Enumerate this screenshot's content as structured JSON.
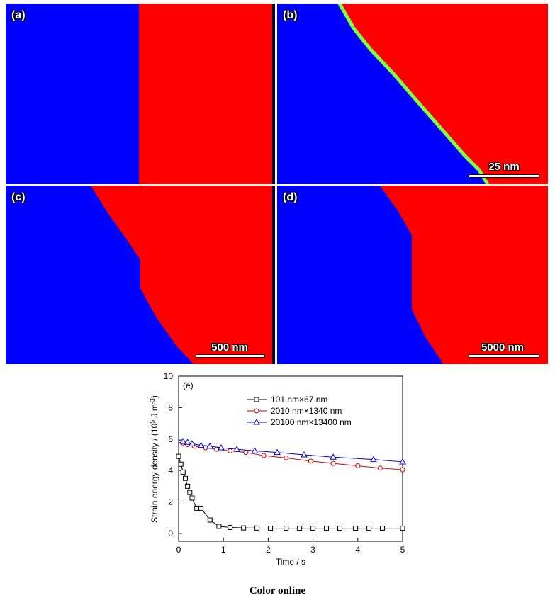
{
  "panels": {
    "a": {
      "label": "(a)"
    },
    "b": {
      "label": "(b)",
      "scalebar": "25 nm"
    },
    "c": {
      "label": "(c)",
      "scalebar": "500 nm"
    },
    "d": {
      "label": "(d)",
      "scalebar": "5000 nm"
    }
  },
  "colors": {
    "domain_left": "#0000ff",
    "domain_right": "#ff0000",
    "wall": "#7fff3f"
  },
  "chart_data": {
    "type": "line",
    "panel_label": "(e)",
    "xlabel": "Time / s",
    "ylabel_main": "Strain energy density / (10",
    "ylabel_sup1": "5",
    "ylabel_mid": " J m",
    "ylabel_sup2": "-3",
    "ylabel_end": ")",
    "xlim": [
      0,
      5
    ],
    "ylim": [
      -0.5,
      10
    ],
    "xticks": [
      0,
      1,
      2,
      3,
      4,
      5
    ],
    "yticks": [
      0,
      2,
      4,
      6,
      8,
      10
    ],
    "legend_position": "top-right",
    "series": [
      {
        "name": "101 nm×67 nm",
        "color": "#000000",
        "marker": "square",
        "x": [
          0.0,
          0.05,
          0.1,
          0.15,
          0.2,
          0.25,
          0.3,
          0.4,
          0.5,
          0.7,
          0.9,
          1.15,
          1.45,
          1.75,
          2.05,
          2.4,
          2.7,
          3.0,
          3.3,
          3.6,
          3.95,
          4.25,
          4.55,
          5.0
        ],
        "y": [
          4.9,
          4.4,
          3.9,
          3.5,
          3.0,
          2.6,
          2.25,
          1.6,
          1.6,
          0.85,
          0.45,
          0.38,
          0.35,
          0.34,
          0.33,
          0.33,
          0.33,
          0.33,
          0.33,
          0.33,
          0.33,
          0.33,
          0.33,
          0.33
        ]
      },
      {
        "name": "2010 nm×1340 nm",
        "color": "#cc0000",
        "marker": "circle",
        "x": [
          0.0,
          0.1,
          0.2,
          0.35,
          0.6,
          0.85,
          1.15,
          1.5,
          1.9,
          2.4,
          2.95,
          3.45,
          4.0,
          4.5,
          5.0
        ],
        "y": [
          5.8,
          5.75,
          5.65,
          5.55,
          5.45,
          5.35,
          5.25,
          5.15,
          4.95,
          4.8,
          4.6,
          4.45,
          4.3,
          4.15,
          4.05
        ]
      },
      {
        "name": "20100 nm×13400 nm",
        "color": "#0000cc",
        "marker": "triangle",
        "x": [
          0.0,
          0.1,
          0.2,
          0.3,
          0.5,
          0.7,
          0.95,
          1.3,
          1.7,
          2.2,
          2.8,
          3.45,
          4.35,
          5.0
        ],
        "y": [
          5.95,
          5.85,
          5.8,
          5.7,
          5.6,
          5.55,
          5.45,
          5.35,
          5.25,
          5.15,
          5.0,
          4.85,
          4.7,
          4.55
        ]
      }
    ]
  },
  "caption": "Color online"
}
